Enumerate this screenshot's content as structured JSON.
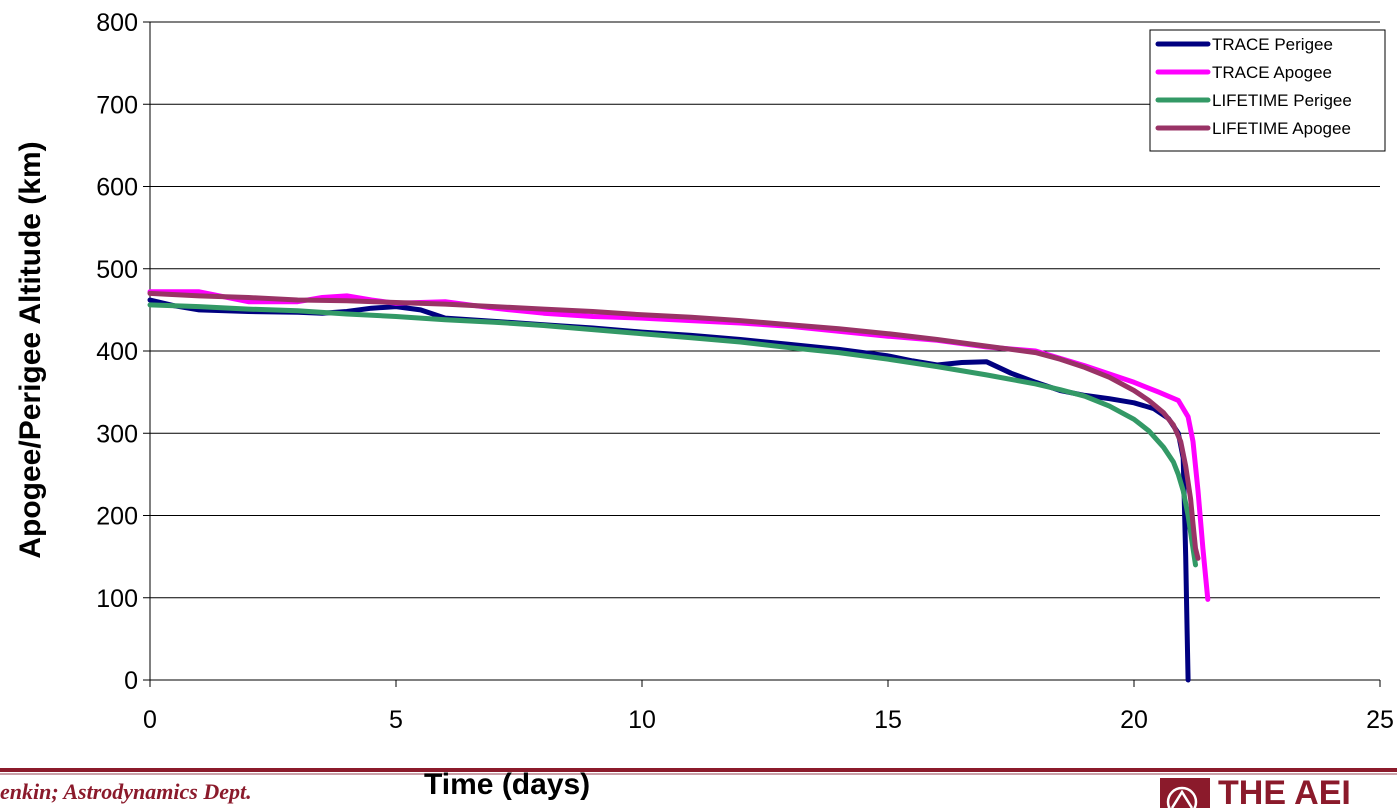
{
  "chart_data": {
    "type": "line",
    "xlabel": "Time (days)",
    "ylabel": "Apogee/Perigee Altitude (km)",
    "xlim": [
      0,
      25
    ],
    "ylim": [
      0,
      800
    ],
    "x_ticks": [
      "0",
      "5",
      "10",
      "15",
      "20",
      "25"
    ],
    "y_ticks": [
      "0",
      "100",
      "200",
      "300",
      "400",
      "500",
      "600",
      "700",
      "800"
    ],
    "grid": "horizontal",
    "legend_position": "top-right",
    "series": [
      {
        "name": "TRACE Perigee",
        "color": "#000080",
        "points": [
          [
            0,
            462
          ],
          [
            0.5,
            455
          ],
          [
            1,
            450
          ],
          [
            2,
            448
          ],
          [
            3,
            447
          ],
          [
            3.5,
            446
          ],
          [
            4,
            448
          ],
          [
            4.5,
            452
          ],
          [
            5,
            454
          ],
          [
            5.5,
            450
          ],
          [
            6,
            440
          ],
          [
            7,
            436
          ],
          [
            8,
            432
          ],
          [
            9,
            428
          ],
          [
            10,
            423
          ],
          [
            11,
            419
          ],
          [
            12,
            414
          ],
          [
            13,
            408
          ],
          [
            14,
            402
          ],
          [
            15,
            394
          ],
          [
            15.5,
            388
          ],
          [
            16,
            383
          ],
          [
            16.5,
            386
          ],
          [
            17,
            387
          ],
          [
            17.5,
            373
          ],
          [
            18,
            362
          ],
          [
            18.5,
            352
          ],
          [
            19,
            346
          ],
          [
            19.5,
            342
          ],
          [
            20,
            337
          ],
          [
            20.4,
            330
          ],
          [
            20.7,
            318
          ],
          [
            20.9,
            300
          ],
          [
            21.0,
            270
          ],
          [
            21.05,
            150
          ],
          [
            21.08,
            60
          ],
          [
            21.1,
            0
          ]
        ]
      },
      {
        "name": "TRACE Apogee",
        "color": "#ff00ff",
        "points": [
          [
            0,
            472
          ],
          [
            1,
            472
          ],
          [
            2,
            460
          ],
          [
            3,
            460
          ],
          [
            3.5,
            465
          ],
          [
            4,
            467
          ],
          [
            4.5,
            462
          ],
          [
            5,
            458
          ],
          [
            6,
            460
          ],
          [
            7,
            452
          ],
          [
            8,
            446
          ],
          [
            9,
            442
          ],
          [
            10,
            440
          ],
          [
            11,
            437
          ],
          [
            12,
            434
          ],
          [
            13,
            430
          ],
          [
            14,
            424
          ],
          [
            15,
            418
          ],
          [
            16,
            413
          ],
          [
            17,
            405
          ],
          [
            18,
            400
          ],
          [
            19,
            382
          ],
          [
            19.5,
            372
          ],
          [
            20,
            362
          ],
          [
            20.5,
            350
          ],
          [
            20.9,
            340
          ],
          [
            21.1,
            320
          ],
          [
            21.2,
            290
          ],
          [
            21.3,
            230
          ],
          [
            21.4,
            160
          ],
          [
            21.5,
            98
          ]
        ]
      },
      {
        "name": "LIFETIME Perigee",
        "color": "#339966",
        "points": [
          [
            0,
            456
          ],
          [
            1,
            454
          ],
          [
            2,
            451
          ],
          [
            3,
            449
          ],
          [
            4,
            445
          ],
          [
            5,
            442
          ],
          [
            6,
            438
          ],
          [
            7,
            435
          ],
          [
            8,
            431
          ],
          [
            9,
            426
          ],
          [
            10,
            421
          ],
          [
            11,
            416
          ],
          [
            12,
            411
          ],
          [
            13,
            404
          ],
          [
            14,
            398
          ],
          [
            15,
            390
          ],
          [
            16,
            381
          ],
          [
            17,
            371
          ],
          [
            18,
            360
          ],
          [
            18.5,
            353
          ],
          [
            19,
            345
          ],
          [
            19.5,
            333
          ],
          [
            20,
            317
          ],
          [
            20.3,
            303
          ],
          [
            20.6,
            283
          ],
          [
            20.8,
            265
          ],
          [
            20.9,
            250
          ],
          [
            21.0,
            230
          ],
          [
            21.1,
            200
          ],
          [
            21.2,
            160
          ],
          [
            21.25,
            140
          ]
        ]
      },
      {
        "name": "LIFETIME Apogee",
        "color": "#993366",
        "points": [
          [
            0,
            470
          ],
          [
            1,
            467
          ],
          [
            2,
            465
          ],
          [
            3,
            462
          ],
          [
            4,
            461
          ],
          [
            5,
            459
          ],
          [
            6,
            457
          ],
          [
            7,
            454
          ],
          [
            8,
            451
          ],
          [
            9,
            448
          ],
          [
            10,
            444
          ],
          [
            11,
            441
          ],
          [
            12,
            437
          ],
          [
            13,
            432
          ],
          [
            14,
            427
          ],
          [
            15,
            421
          ],
          [
            16,
            414
          ],
          [
            17,
            406
          ],
          [
            18,
            398
          ],
          [
            18.5,
            390
          ],
          [
            19,
            380
          ],
          [
            19.5,
            368
          ],
          [
            20,
            352
          ],
          [
            20.3,
            340
          ],
          [
            20.6,
            325
          ],
          [
            20.8,
            310
          ],
          [
            20.95,
            290
          ],
          [
            21.05,
            260
          ],
          [
            21.15,
            220
          ],
          [
            21.2,
            190
          ],
          [
            21.25,
            160
          ],
          [
            21.3,
            148
          ]
        ]
      }
    ]
  },
  "footer": {
    "credit": "enkin; Astrodynamics Dept.",
    "logo_text": "THE AEI",
    "logo_mark": "aerospace-logo-icon"
  }
}
